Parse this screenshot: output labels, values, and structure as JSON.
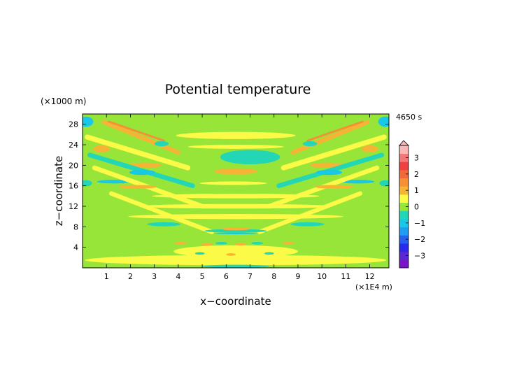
{
  "chart_data": {
    "type": "heatmap",
    "title": "Potential temperature",
    "xlabel": "x−coordinate",
    "ylabel": "z−coordinate",
    "x_unit": "(×1E4 m)",
    "y_unit": "(×1000 m)",
    "time_label": "4650 s",
    "xlim": [
      0,
      12.8
    ],
    "ylim": [
      0,
      30
    ],
    "x_ticks": [
      "1",
      "2",
      "3",
      "4",
      "5",
      "6",
      "7",
      "8",
      "9",
      "10",
      "11",
      "12"
    ],
    "y_ticks": [
      "4",
      "8",
      "12",
      "16",
      "20",
      "24",
      "28"
    ],
    "colorbar": {
      "ticks": [
        "3",
        "2",
        "1",
        "0",
        "−1",
        "−2",
        "−3"
      ],
      "levels": [
        {
          "lo": -3.75,
          "hi": -3.25,
          "color": "#7a16c8"
        },
        {
          "lo": -3.25,
          "hi": -2.75,
          "color": "#5a2ad0"
        },
        {
          "lo": -2.75,
          "hi": -2.25,
          "color": "#2a2aee"
        },
        {
          "lo": -2.25,
          "hi": -1.75,
          "color": "#2660ee"
        },
        {
          "lo": -1.75,
          "hi": -1.25,
          "color": "#1d9ef0"
        },
        {
          "lo": -1.25,
          "hi": -0.75,
          "color": "#18c8e6"
        },
        {
          "lo": -0.75,
          "hi": -0.25,
          "color": "#22d6b6"
        },
        {
          "lo": -0.25,
          "hi": 0.25,
          "color": "#98e53a"
        },
        {
          "lo": 0.25,
          "hi": 0.75,
          "color": "#fbfa46"
        },
        {
          "lo": 0.75,
          "hi": 1.25,
          "color": "#f6b434"
        },
        {
          "lo": 1.25,
          "hi": 1.75,
          "color": "#f59034"
        },
        {
          "lo": 1.75,
          "hi": 2.25,
          "color": "#f26a3a"
        },
        {
          "lo": 2.25,
          "hi": 2.75,
          "color": "#ee4242"
        },
        {
          "lo": 2.75,
          "hi": 3.25,
          "color": "#f27878"
        },
        {
          "lo": 3.25,
          "hi": 3.75,
          "color": "#f8b8b8"
        }
      ]
    },
    "features": [
      {
        "kind": "ellipse",
        "x": 7.0,
        "z": 21.6,
        "rx": 1.25,
        "rz": 1.4,
        "v": -0.5
      },
      {
        "kind": "ellipse",
        "x": 6.4,
        "z": 18.8,
        "rx": 0.9,
        "rz": 0.6,
        "v": 1.0
      },
      {
        "kind": "ellipse",
        "x": 6.3,
        "z": 16.5,
        "rx": 1.4,
        "rz": 0.35,
        "v": 0.5
      },
      {
        "kind": "band",
        "x0": 0.9,
        "z0": 28.4,
        "x1": 4.0,
        "z1": 22.5,
        "w": 0.85,
        "v": 1.0
      },
      {
        "kind": "band",
        "x0": 1.1,
        "z0": 28.5,
        "x1": 3.4,
        "z1": 24.8,
        "w": 0.4,
        "v": 1.5
      },
      {
        "kind": "band",
        "x0": 11.9,
        "z0": 28.4,
        "x1": 8.8,
        "z1": 22.5,
        "w": 0.85,
        "v": 1.0
      },
      {
        "kind": "band",
        "x0": 11.7,
        "z0": 28.5,
        "x1": 9.4,
        "z1": 24.8,
        "w": 0.4,
        "v": 1.5
      },
      {
        "kind": "band",
        "x0": 0.2,
        "z0": 25.5,
        "x1": 4.4,
        "z1": 19.5,
        "w": 1.0,
        "v": 0.5
      },
      {
        "kind": "band",
        "x0": 12.6,
        "z0": 25.5,
        "x1": 8.4,
        "z1": 19.5,
        "w": 1.0,
        "v": 0.5
      },
      {
        "kind": "ellipse",
        "x": 0.8,
        "z": 23.2,
        "rx": 0.35,
        "rz": 0.7,
        "v": 1.0
      },
      {
        "kind": "ellipse",
        "x": 12.0,
        "z": 23.2,
        "rx": 0.35,
        "rz": 0.7,
        "v": 1.0
      },
      {
        "kind": "ellipse",
        "x": 2.6,
        "z": 20.0,
        "rx": 0.7,
        "rz": 0.5,
        "v": 1.0
      },
      {
        "kind": "ellipse",
        "x": 10.2,
        "z": 20.0,
        "rx": 0.7,
        "rz": 0.5,
        "v": 1.0
      },
      {
        "kind": "band",
        "x0": 0.3,
        "z0": 22.0,
        "x1": 4.6,
        "z1": 16.0,
        "w": 0.9,
        "v": -0.5
      },
      {
        "kind": "band",
        "x0": 12.5,
        "z0": 22.0,
        "x1": 8.2,
        "z1": 16.0,
        "w": 0.9,
        "v": -0.5
      },
      {
        "kind": "ellipse",
        "x": 2.5,
        "z": 18.6,
        "rx": 0.55,
        "rz": 0.5,
        "v": -1.0
      },
      {
        "kind": "ellipse",
        "x": 10.3,
        "z": 18.6,
        "rx": 0.55,
        "rz": 0.5,
        "v": -1.0
      },
      {
        "kind": "ellipse",
        "x": 1.3,
        "z": 16.8,
        "rx": 0.7,
        "rz": 0.35,
        "v": -1.0
      },
      {
        "kind": "ellipse",
        "x": 11.5,
        "z": 16.8,
        "rx": 0.7,
        "rz": 0.35,
        "v": -1.0
      },
      {
        "kind": "ellipse",
        "x": 3.3,
        "z": 24.2,
        "rx": 0.3,
        "rz": 0.5,
        "v": -0.5
      },
      {
        "kind": "ellipse",
        "x": 9.5,
        "z": 24.2,
        "rx": 0.3,
        "rz": 0.5,
        "v": -0.5
      },
      {
        "kind": "band",
        "x0": 0.5,
        "z0": 19.5,
        "x1": 5.0,
        "z1": 12.0,
        "w": 0.9,
        "v": 0.5
      },
      {
        "kind": "band",
        "x0": 12.3,
        "z0": 19.5,
        "x1": 7.8,
        "z1": 12.0,
        "w": 0.9,
        "v": 0.5
      },
      {
        "kind": "ellipse",
        "x": 2.3,
        "z": 15.8,
        "rx": 0.8,
        "rz": 0.35,
        "v": 1.0
      },
      {
        "kind": "ellipse",
        "x": 10.5,
        "z": 15.8,
        "rx": 0.8,
        "rz": 0.35,
        "v": 1.0
      },
      {
        "kind": "band",
        "x0": 1.2,
        "z0": 14.5,
        "x1": 5.4,
        "z1": 7.0,
        "w": 0.85,
        "v": 0.5
      },
      {
        "kind": "band",
        "x0": 11.6,
        "z0": 14.5,
        "x1": 7.4,
        "z1": 7.0,
        "w": 0.85,
        "v": 0.5
      },
      {
        "kind": "ellipse",
        "x": 3.4,
        "z": 8.5,
        "rx": 0.7,
        "rz": 0.4,
        "v": -0.5
      },
      {
        "kind": "ellipse",
        "x": 9.4,
        "z": 8.5,
        "rx": 0.7,
        "rz": 0.4,
        "v": -0.5
      },
      {
        "kind": "ellipse",
        "x": 0.15,
        "z": 28.5,
        "rx": 0.3,
        "rz": 1.0,
        "v": -1.0
      },
      {
        "kind": "ellipse",
        "x": 12.65,
        "z": 28.5,
        "rx": 0.3,
        "rz": 1.0,
        "v": -1.0
      },
      {
        "kind": "ellipse",
        "x": 0.15,
        "z": 16.5,
        "rx": 0.25,
        "rz": 0.6,
        "v": -0.5
      },
      {
        "kind": "ellipse",
        "x": 12.65,
        "z": 16.5,
        "rx": 0.25,
        "rz": 0.6,
        "v": -0.5
      },
      {
        "kind": "ellipse",
        "x": 6.4,
        "z": 7.2,
        "rx": 1.3,
        "rz": 0.35,
        "v": -0.5
      },
      {
        "kind": "ellipse",
        "x": 6.4,
        "z": 7.6,
        "rx": 0.6,
        "rz": 0.3,
        "v": 1.0
      },
      {
        "kind": "ellipse",
        "x": 6.4,
        "z": 6.7,
        "rx": 0.9,
        "rz": 0.15,
        "v": -1.0
      },
      {
        "kind": "ellipse",
        "x": 6.4,
        "z": 3.2,
        "rx": 2.6,
        "rz": 1.2,
        "v": 0.5
      },
      {
        "kind": "ellipse",
        "x": 6.4,
        "z": 10.0,
        "rx": 4.5,
        "rz": 0.5,
        "v": 0.5
      },
      {
        "kind": "ellipse",
        "x": 6.4,
        "z": 12.0,
        "rx": 4.0,
        "rz": 0.45,
        "v": 0.5
      },
      {
        "kind": "ellipse",
        "x": 6.4,
        "z": 14.0,
        "rx": 3.5,
        "rz": 0.45,
        "v": 0.5
      },
      {
        "kind": "ellipse",
        "x": 6.4,
        "z": 23.6,
        "rx": 2.0,
        "rz": 0.4,
        "v": 0.5
      },
      {
        "kind": "ellipse",
        "x": 6.4,
        "z": 25.8,
        "rx": 2.5,
        "rz": 0.7,
        "v": 0.5
      },
      {
        "kind": "ellipse",
        "x": 6.4,
        "z": 1.5,
        "rx": 6.3,
        "rz": 1.0,
        "v": 0.5
      },
      {
        "kind": "ellipse",
        "x": 5.2,
        "z": 4.6,
        "rx": 0.25,
        "rz": 0.25,
        "v": 1.0
      },
      {
        "kind": "ellipse",
        "x": 5.8,
        "z": 4.8,
        "rx": 0.25,
        "rz": 0.25,
        "v": -0.5
      },
      {
        "kind": "ellipse",
        "x": 6.6,
        "z": 4.6,
        "rx": 0.25,
        "rz": 0.25,
        "v": 1.0
      },
      {
        "kind": "ellipse",
        "x": 7.3,
        "z": 4.8,
        "rx": 0.25,
        "rz": 0.25,
        "v": -0.5
      },
      {
        "kind": "ellipse",
        "x": 4.9,
        "z": 2.8,
        "rx": 0.2,
        "rz": 0.25,
        "v": -0.5
      },
      {
        "kind": "ellipse",
        "x": 6.2,
        "z": 2.6,
        "rx": 0.2,
        "rz": 0.25,
        "v": 1.0
      },
      {
        "kind": "ellipse",
        "x": 7.8,
        "z": 2.8,
        "rx": 0.2,
        "rz": 0.25,
        "v": -0.5
      },
      {
        "kind": "ellipse",
        "x": 4.1,
        "z": 4.8,
        "rx": 0.25,
        "rz": 0.25,
        "v": 1.0
      },
      {
        "kind": "ellipse",
        "x": 8.6,
        "z": 4.8,
        "rx": 0.25,
        "rz": 0.25,
        "v": 1.0
      },
      {
        "kind": "ellipse",
        "x": 6.4,
        "z": 0.3,
        "rx": 1.4,
        "rz": 0.3,
        "v": -0.5
      }
    ]
  }
}
